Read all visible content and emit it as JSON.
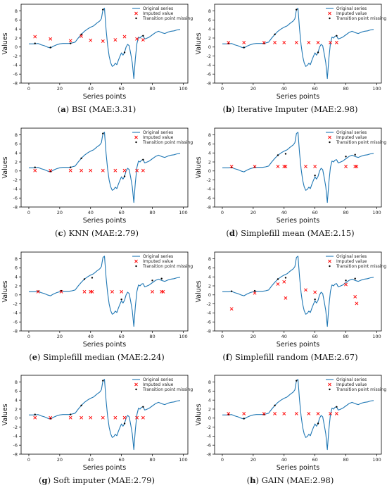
{
  "chart_data": [
    {
      "letter": "a",
      "caption": "BSI (MAE:3.31)",
      "type": "line",
      "xlabel": "Series points",
      "ylabel": "Values",
      "xlim": [
        -5,
        103
      ],
      "ylim": [
        -8,
        9.5
      ],
      "xticks": [
        0,
        20,
        40,
        60,
        80,
        100
      ],
      "yticks": [
        -8,
        -6,
        -4,
        -2,
        0,
        2,
        4,
        6,
        8
      ],
      "legend": {
        "position": "top-right",
        "entries": [
          "Original series",
          "Imputed value",
          "Transition point missing value"
        ]
      },
      "imputed": [
        [
          4,
          2.3
        ],
        [
          14,
          1.8
        ],
        [
          27,
          1.4
        ],
        [
          34,
          2.4
        ],
        [
          40,
          1.5
        ],
        [
          48,
          1.3
        ],
        [
          56,
          1.6
        ],
        [
          62,
          2.3
        ],
        [
          70,
          1.8
        ],
        [
          74,
          1.6
        ]
      ],
      "transition": [
        [
          4,
          0.8
        ],
        [
          14,
          -0.1
        ],
        [
          27,
          0.8
        ],
        [
          34,
          2.8
        ],
        [
          48,
          8.3
        ],
        [
          62,
          -1.2
        ],
        [
          74,
          2.5
        ]
      ]
    },
    {
      "letter": "b",
      "caption": "Iterative Imputer (MAE:2.98)",
      "type": "line",
      "xlabel": "Series points",
      "ylabel": "Values",
      "xlim": [
        -5,
        103
      ],
      "ylim": [
        -8,
        9.5
      ],
      "xticks": [
        0,
        20,
        40,
        60,
        80,
        100
      ],
      "yticks": [
        -8,
        -6,
        -4,
        -2,
        0,
        2,
        4,
        6,
        8
      ],
      "legend": {
        "position": "top-right",
        "entries": [
          "Original series",
          "Imputed value",
          "Transition point missing value"
        ]
      },
      "imputed": [
        [
          4,
          1.0
        ],
        [
          14,
          1.0
        ],
        [
          27,
          1.0
        ],
        [
          34,
          1.0
        ],
        [
          40,
          1.0
        ],
        [
          48,
          1.0
        ],
        [
          56,
          1.0
        ],
        [
          62,
          1.0
        ],
        [
          70,
          1.0
        ],
        [
          74,
          1.0
        ]
      ],
      "transition": [
        [
          4,
          0.8
        ],
        [
          14,
          -0.1
        ],
        [
          27,
          0.8
        ],
        [
          34,
          2.8
        ],
        [
          48,
          8.3
        ],
        [
          62,
          -1.2
        ],
        [
          74,
          2.5
        ]
      ]
    },
    {
      "letter": "c",
      "caption": "KNN (MAE:2.79)",
      "type": "line",
      "xlabel": "Series points",
      "ylabel": "Values",
      "xlim": [
        -5,
        103
      ],
      "ylim": [
        -8,
        9.5
      ],
      "xticks": [
        0,
        20,
        40,
        60,
        80,
        100
      ],
      "yticks": [
        -8,
        -6,
        -4,
        -2,
        0,
        2,
        4,
        6,
        8
      ],
      "legend": {
        "position": "top-right",
        "entries": [
          "Original series",
          "Imputed value",
          "Transition point missing value"
        ]
      },
      "imputed": [
        [
          4,
          0.1
        ],
        [
          14,
          0.1
        ],
        [
          27,
          0.1
        ],
        [
          34,
          0.1
        ],
        [
          40,
          0.1
        ],
        [
          48,
          0.1
        ],
        [
          56,
          0.1
        ],
        [
          62,
          0.1
        ],
        [
          70,
          0.1
        ],
        [
          74,
          0.1
        ]
      ],
      "transition": [
        [
          4,
          0.8
        ],
        [
          14,
          -0.1
        ],
        [
          27,
          0.8
        ],
        [
          34,
          2.8
        ],
        [
          48,
          8.3
        ],
        [
          62,
          -1.2
        ],
        [
          74,
          2.5
        ]
      ]
    },
    {
      "letter": "d",
      "caption": "Simplefill mean (MAE:2.15)",
      "type": "line",
      "xlabel": "Series points",
      "ylabel": "Values",
      "xlim": [
        -5,
        103
      ],
      "ylim": [
        -8,
        9.5
      ],
      "xticks": [
        0,
        20,
        40,
        60,
        80,
        100
      ],
      "yticks": [
        -8,
        -6,
        -4,
        -2,
        0,
        2,
        4,
        6,
        8
      ],
      "legend": {
        "position": "top-right",
        "entries": [
          "Original series",
          "Imputed value",
          "Transition point missing value"
        ]
      },
      "imputed": [
        [
          6,
          1.0
        ],
        [
          21,
          1.0
        ],
        [
          36,
          1.0
        ],
        [
          40,
          1.0
        ],
        [
          41,
          1.0
        ],
        [
          54,
          1.0
        ],
        [
          60,
          1.0
        ],
        [
          80,
          1.0
        ],
        [
          86,
          1.0
        ],
        [
          87,
          1.0
        ]
      ],
      "transition": [
        [
          6,
          0.8
        ],
        [
          21,
          0.9
        ],
        [
          36,
          3.5
        ],
        [
          41,
          3.8
        ],
        [
          60,
          -1.0
        ],
        [
          80,
          3.2
        ],
        [
          86,
          3.6
        ]
      ]
    },
    {
      "letter": "e",
      "caption": "Simplefill median (MAE:2.24)",
      "type": "line",
      "xlabel": "Series points",
      "ylabel": "Values",
      "xlim": [
        -5,
        103
      ],
      "ylim": [
        -8,
        9.5
      ],
      "xticks": [
        0,
        20,
        40,
        60,
        80,
        100
      ],
      "yticks": [
        -8,
        -6,
        -4,
        -2,
        0,
        2,
        4,
        6,
        8
      ],
      "legend": {
        "position": "top-right",
        "entries": [
          "Original series",
          "Imputed value",
          "Transition point missing value"
        ]
      },
      "imputed": [
        [
          6,
          0.7
        ],
        [
          21,
          0.7
        ],
        [
          36,
          0.7
        ],
        [
          40,
          0.7
        ],
        [
          41,
          0.7
        ],
        [
          54,
          0.7
        ],
        [
          60,
          0.7
        ],
        [
          80,
          0.7
        ],
        [
          86,
          0.7
        ],
        [
          87,
          0.7
        ]
      ],
      "transition": [
        [
          6,
          0.8
        ],
        [
          21,
          0.9
        ],
        [
          36,
          3.5
        ],
        [
          41,
          3.8
        ],
        [
          60,
          -1.0
        ],
        [
          80,
          3.2
        ],
        [
          86,
          3.6
        ]
      ]
    },
    {
      "letter": "f",
      "caption": "Simplefill random (MAE:2.67)",
      "type": "line",
      "xlabel": "Series points",
      "ylabel": "Values",
      "xlim": [
        -5,
        103
      ],
      "ylim": [
        -8,
        9.5
      ],
      "xticks": [
        0,
        20,
        40,
        60,
        80,
        100
      ],
      "yticks": [
        -8,
        -6,
        -4,
        -2,
        0,
        2,
        4,
        6,
        8
      ],
      "legend": {
        "position": "top-right",
        "entries": [
          "Original series",
          "Imputed value",
          "Transition point missing value"
        ]
      },
      "imputed": [
        [
          6,
          -3.1
        ],
        [
          21,
          0.4
        ],
        [
          36,
          2.4
        ],
        [
          40,
          2.9
        ],
        [
          41,
          -0.7
        ],
        [
          54,
          1.1
        ],
        [
          60,
          0.6
        ],
        [
          80,
          2.3
        ],
        [
          86,
          -0.4
        ],
        [
          87,
          -1.9
        ]
      ],
      "transition": [
        [
          6,
          0.8
        ],
        [
          21,
          0.9
        ],
        [
          36,
          3.5
        ],
        [
          41,
          3.8
        ],
        [
          60,
          -1.0
        ],
        [
          80,
          3.2
        ],
        [
          86,
          3.6
        ]
      ]
    },
    {
      "letter": "g",
      "caption": "Soft imputer (MAE:2.79)",
      "type": "line",
      "xlabel": "Series points",
      "ylabel": "Values",
      "xlim": [
        -5,
        103
      ],
      "ylim": [
        -8,
        9.5
      ],
      "xticks": [
        0,
        20,
        40,
        60,
        80,
        100
      ],
      "yticks": [
        -8,
        -6,
        -4,
        -2,
        0,
        2,
        4,
        6,
        8
      ],
      "legend": {
        "position": "top-right",
        "entries": [
          "Original series",
          "Imputed value",
          "Transition point missing value"
        ]
      },
      "imputed": [
        [
          4,
          0.1
        ],
        [
          14,
          0.1
        ],
        [
          27,
          0.1
        ],
        [
          34,
          0.1
        ],
        [
          40,
          0.1
        ],
        [
          48,
          0.1
        ],
        [
          56,
          0.1
        ],
        [
          62,
          0.1
        ],
        [
          70,
          0.1
        ],
        [
          74,
          0.1
        ]
      ],
      "transition": [
        [
          4,
          0.8
        ],
        [
          14,
          -0.1
        ],
        [
          27,
          0.8
        ],
        [
          34,
          2.8
        ],
        [
          48,
          8.3
        ],
        [
          62,
          -1.2
        ],
        [
          74,
          2.5
        ]
      ]
    },
    {
      "letter": "h",
      "caption": "GAIN (MAE:2.98)",
      "type": "line",
      "xlabel": "Series points",
      "ylabel": "Values",
      "xlim": [
        -5,
        103
      ],
      "ylim": [
        -8,
        9.5
      ],
      "xticks": [
        0,
        20,
        40,
        60,
        80,
        100
      ],
      "yticks": [
        -8,
        -6,
        -4,
        -2,
        0,
        2,
        4,
        6,
        8
      ],
      "legend": {
        "position": "top-right",
        "entries": [
          "Original series",
          "Imputed value",
          "Transition point missing value"
        ]
      },
      "imputed": [
        [
          4,
          1.0
        ],
        [
          14,
          1.0
        ],
        [
          27,
          1.0
        ],
        [
          34,
          1.0
        ],
        [
          40,
          1.0
        ],
        [
          48,
          1.0
        ],
        [
          56,
          1.0
        ],
        [
          62,
          1.0
        ],
        [
          70,
          1.0
        ],
        [
          74,
          1.0
        ]
      ],
      "transition": [
        [
          4,
          0.8
        ],
        [
          14,
          -0.1
        ],
        [
          27,
          0.8
        ],
        [
          34,
          2.8
        ],
        [
          48,
          8.3
        ],
        [
          62,
          -1.2
        ],
        [
          74,
          2.5
        ]
      ]
    }
  ],
  "original_series": {
    "x": [
      0,
      2,
      4,
      6,
      8,
      10,
      12,
      14,
      16,
      18,
      20,
      22,
      24,
      26,
      28,
      30,
      32,
      34,
      36,
      38,
      40,
      42,
      44,
      46,
      47,
      48,
      49,
      50,
      51,
      52,
      53,
      54,
      55,
      56,
      57,
      58,
      59,
      60,
      61,
      62,
      63,
      64,
      65,
      66,
      67,
      68,
      69,
      70,
      71,
      72,
      73,
      74,
      75,
      76,
      78,
      80,
      82,
      84,
      86,
      88,
      90,
      92,
      94,
      96,
      98
    ],
    "y": [
      0.7,
      0.7,
      0.7,
      0.8,
      0.5,
      0.3,
      0.0,
      -0.2,
      0.2,
      0.5,
      0.7,
      0.8,
      0.8,
      0.8,
      0.9,
      1.1,
      2.0,
      2.8,
      3.5,
      4.0,
      4.4,
      4.7,
      5.3,
      5.8,
      6.3,
      8.3,
      8.6,
      4.0,
      0.5,
      -2.0,
      -3.5,
      -4.3,
      -4.1,
      -3.6,
      -3.9,
      -2.9,
      -2.1,
      -1.3,
      -1.8,
      -1.2,
      0.0,
      0.6,
      0.3,
      -1.5,
      -3.5,
      -7.0,
      -2.5,
      0.8,
      2.2,
      2.0,
      2.4,
      2.5,
      1.8,
      1.9,
      2.2,
      2.7,
      3.2,
      3.5,
      3.2,
      3.0,
      3.3,
      3.5,
      3.6,
      3.8,
      3.9
    ]
  },
  "colors": {
    "series": "#1f77b4",
    "imputed": "#ff0000",
    "transition": "#000000"
  }
}
